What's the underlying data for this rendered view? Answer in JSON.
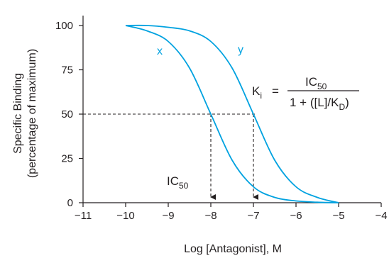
{
  "chart_data": {
    "type": "line",
    "xlabel": "Log [Antagonist], M",
    "ylabel_line1": "Specific Binding",
    "ylabel_line2": "(percentage of maximum)",
    "xlim": [
      -11,
      -4
    ],
    "ylim": [
      0,
      100
    ],
    "x_ticks": [
      -11,
      -10,
      -9,
      -8,
      -7,
      -6,
      -5,
      -4
    ],
    "x_tick_labels": [
      "−11",
      "−10",
      "−9",
      "−8",
      "−7",
      "−6",
      "−5",
      "−4"
    ],
    "y_ticks": [
      0,
      25,
      50,
      75,
      100
    ],
    "y_tick_labels": [
      "0",
      "25",
      "50",
      "75",
      "100"
    ],
    "grid": false,
    "series": [
      {
        "name": "x",
        "ic50_log": -8,
        "x": [
          -10,
          -9.5,
          -9,
          -8.5,
          -8,
          -7.5,
          -7,
          -6.5,
          -6,
          -5.5,
          -5
        ],
        "values": [
          100,
          97,
          91,
          76,
          50,
          24,
          9,
          3,
          1,
          0.3,
          0
        ]
      },
      {
        "name": "y",
        "ic50_log": -7,
        "x": [
          -10,
          -9.5,
          -9,
          -8.5,
          -8,
          -7.5,
          -7,
          -6.5,
          -6,
          -5.5,
          -5
        ],
        "values": [
          100,
          100,
          99,
          97,
          91,
          76,
          50,
          24,
          9,
          3,
          0
        ]
      }
    ],
    "reference_level": 50,
    "annotations": {
      "ic50_label": "IC",
      "ic50_sub": "50",
      "equation": {
        "lhs": "K",
        "lhs_sub": "i",
        "equals": "=",
        "numerator": "IC",
        "numerator_sub": "50",
        "denominator_pre": "1 + ([L]/K",
        "denominator_sub": "D",
        "denominator_post": ")"
      }
    },
    "colors": {
      "series": "#00a2e0",
      "axis": "#231f20",
      "text": "#231f20"
    }
  }
}
